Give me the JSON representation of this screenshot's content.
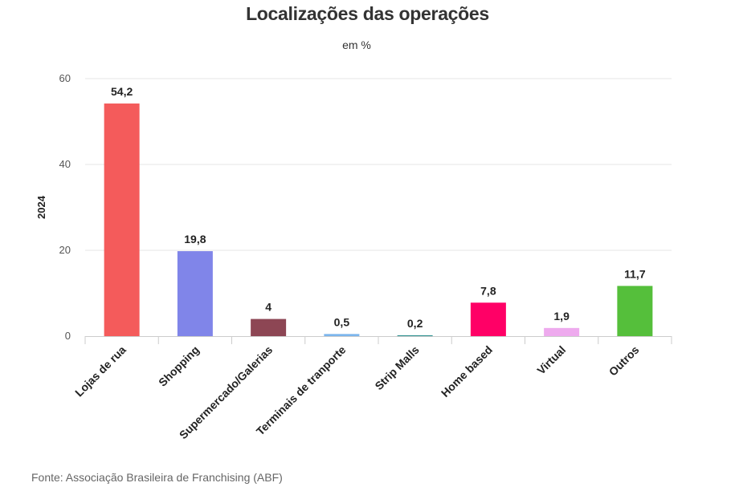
{
  "chart_data": {
    "type": "bar",
    "title": "Localizações das operações",
    "subtitle": "em %",
    "ylabel": "2024",
    "xlabel": "",
    "ylim": [
      0,
      60
    ],
    "yticks": [
      0,
      20,
      40,
      60
    ],
    "grid": true,
    "categories": [
      "Lojas de rua",
      "Shopping",
      "Supermercado/Galerias",
      "Terminais de tranporte",
      "Strip Malls",
      "Home based",
      "Virtual",
      "Outros"
    ],
    "values": [
      54.2,
      19.8,
      4,
      0.5,
      0.2,
      7.8,
      1.9,
      11.7
    ],
    "value_labels": [
      "54,2",
      "19,8",
      "4",
      "0,5",
      "0,2",
      "7,8",
      "1,9",
      "11,7"
    ],
    "colors": [
      "#f45b5b",
      "#8085e9",
      "#8d4654",
      "#7cb5ec",
      "#2b908f",
      "#ff0066",
      "#eeaaee",
      "#55bf3b"
    ]
  },
  "source": "Fonte: Associação Brasileira de Franchising (ABF)"
}
